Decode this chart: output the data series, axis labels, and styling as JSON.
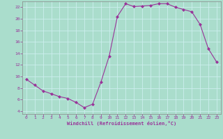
{
  "x": [
    0,
    1,
    2,
    3,
    4,
    5,
    6,
    7,
    8,
    9,
    10,
    11,
    12,
    13,
    14,
    15,
    16,
    17,
    18,
    19,
    20,
    21,
    22,
    23
  ],
  "y": [
    9.5,
    8.5,
    7.5,
    7.0,
    6.5,
    6.2,
    5.5,
    4.6,
    5.2,
    9.0,
    13.5,
    20.4,
    22.6,
    22.1,
    22.2,
    22.3,
    22.6,
    22.6,
    22.0,
    21.6,
    21.2,
    19.0,
    14.8,
    12.5
  ],
  "line_color": "#993399",
  "marker": "D",
  "marker_size": 2,
  "bg_color": "#aaddcc",
  "grid_color": "#bbeeee",
  "xlabel": "Windchill (Refroidissement éolien,°C)",
  "tick_color": "#993399",
  "ylim": [
    3.5,
    23.0
  ],
  "xlim": [
    -0.5,
    23.5
  ],
  "yticks": [
    4,
    6,
    8,
    10,
    12,
    14,
    16,
    18,
    20,
    22
  ],
  "xticks": [
    0,
    1,
    2,
    3,
    4,
    5,
    6,
    7,
    8,
    9,
    10,
    11,
    12,
    13,
    14,
    15,
    16,
    17,
    18,
    19,
    20,
    21,
    22,
    23
  ]
}
